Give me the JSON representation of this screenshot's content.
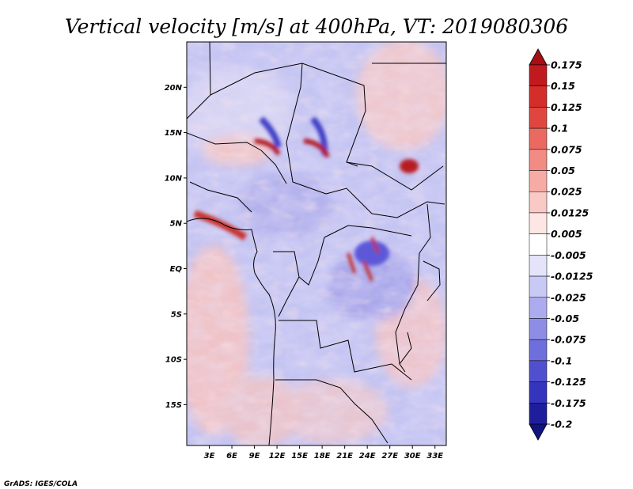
{
  "chart_data": {
    "type": "heatmap",
    "title": "Vertical velocity [m/s] at 400hPa, VT: 2019080306",
    "variable": "Vertical velocity",
    "units": "m/s",
    "level": "400hPa",
    "valid_time": "2019080306",
    "x_tick_labels": [
      "3E",
      "6E",
      "9E",
      "12E",
      "15E",
      "18E",
      "21E",
      "24E",
      "27E",
      "30E",
      "33E"
    ],
    "x_tick_values": [
      3,
      6,
      9,
      12,
      15,
      18,
      21,
      24,
      27,
      30,
      33
    ],
    "y_tick_labels": [
      "20N",
      "15N",
      "10N",
      "5N",
      "EQ",
      "5S",
      "10S",
      "15S"
    ],
    "y_tick_values": [
      20,
      15,
      10,
      5,
      0,
      -5,
      -10,
      -15
    ],
    "xlim": [
      0,
      34.5
    ],
    "ylim": [
      -19.5,
      25
    ],
    "colorbar": {
      "levels": [
        "0.175",
        "0.15",
        "0.125",
        "0.1",
        "0.075",
        "0.05",
        "0.025",
        "0.0125",
        "0.005",
        "-0.005",
        "-0.0125",
        "-0.025",
        "-0.05",
        "-0.075",
        "-0.1",
        "-0.125",
        "-0.175",
        "-0.2"
      ],
      "colors": [
        "#a50f15",
        "#c01a1f",
        "#d42e2b",
        "#e0463f",
        "#ea6a62",
        "#f28b84",
        "#f6aba5",
        "#f9c9c5",
        "#fde6e4",
        "#ffffff",
        "#e3e3fa",
        "#c9c9f5",
        "#ababee",
        "#8d8de6",
        "#6e6edc",
        "#5050cf",
        "#3434bd",
        "#1e1e9c",
        "#121280"
      ]
    },
    "features": [
      {
        "name": "strong updraft arc",
        "lon": 11.5,
        "lat": 14.5,
        "sign": "positive"
      },
      {
        "name": "strong updraft arc",
        "lon": 17.5,
        "lat": 14.0,
        "sign": "positive"
      },
      {
        "name": "updraft core",
        "lon": 30.5,
        "lat": 11.2,
        "sign": "positive"
      },
      {
        "name": "updraft band",
        "lon": 3.0,
        "lat": 5.5,
        "sign": "positive"
      },
      {
        "name": "updraft cluster",
        "lon": 25.5,
        "lat": 2.0,
        "sign": "positive"
      }
    ]
  },
  "footer": {
    "credit": "GrADS: IGES/COLA"
  }
}
